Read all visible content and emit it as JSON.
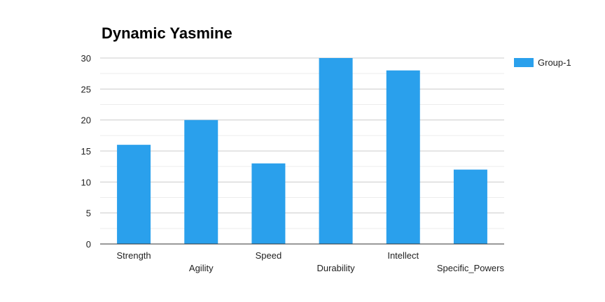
{
  "chart_data": {
    "type": "bar",
    "title": "Dynamic Yasmine",
    "xlabel": "",
    "ylabel": "",
    "categories": [
      "Strength",
      "Agility",
      "Speed",
      "Durability",
      "Intellect",
      "Specific_Powers"
    ],
    "series": [
      {
        "name": "Group-1",
        "values": [
          16,
          20,
          13,
          30,
          28,
          12
        ],
        "color": "#2aa0ec"
      }
    ],
    "ylim": [
      0,
      30
    ],
    "yticks": [
      0,
      5,
      10,
      15,
      20,
      25,
      30
    ],
    "grid": true,
    "legend_position": "top-right"
  }
}
